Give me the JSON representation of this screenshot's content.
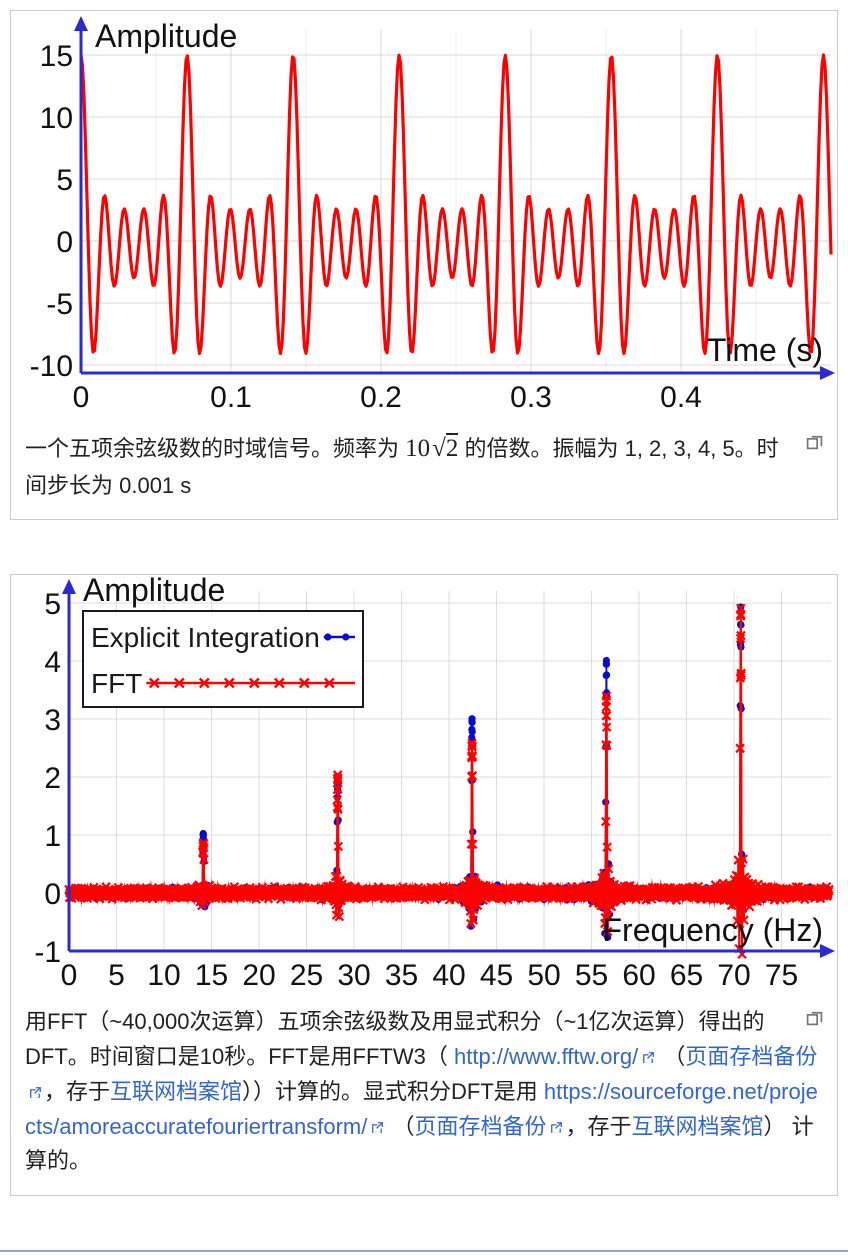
{
  "colors": {
    "axis_blue": "#2a2ad2",
    "curve_red": "#ff0000",
    "series_blue": "#0a0ad0",
    "link_blue": "#3366cc",
    "grid_gray": "#d9d9d9",
    "figure_border": "#c8ccd1"
  },
  "icons": {
    "expand": "expand-icon (two overlapping squares, opens media viewer)",
    "external_link": "external-link-icon (box with outward arrow)"
  },
  "figure1": {
    "caption_segments": [
      {
        "type": "text",
        "text": "一个五项余弦级数的时域信号。频率为 "
      },
      {
        "type": "math",
        "base": "10",
        "radicand": "2"
      },
      {
        "type": "text",
        "text": " 的倍数。振幅为 1, 2, 3, 4, 5。时间步长为 0.001 s"
      }
    ]
  },
  "figure2": {
    "caption_segments": [
      {
        "type": "text",
        "text": "用FFT（~40,000次运算）五项余弦级数及用显式积分（~1亿次运算）得出的DFT。时间窗口是10秒。FFT是用FFTW3（ "
      },
      {
        "type": "extlink",
        "text": "http://www.fftw.org/"
      },
      {
        "type": "text",
        "text": " （"
      },
      {
        "type": "extlink",
        "text": "页面存档备份"
      },
      {
        "type": "text",
        "text": "，存于"
      },
      {
        "type": "link",
        "text": "互联网档案馆"
      },
      {
        "type": "text",
        "text": "））计算的。显式积分DFT是用 "
      },
      {
        "type": "extlink",
        "text": "https://sourceforge.net/projects/amoreaccuratefouriertransform/"
      },
      {
        "type": "text",
        "text": " （"
      },
      {
        "type": "extlink",
        "text": "页面存档备份"
      },
      {
        "type": "text",
        "text": "，存于"
      },
      {
        "type": "link",
        "text": "互联网档案馆"
      },
      {
        "type": "text",
        "text": "） 计算的。"
      }
    ]
  },
  "chart_data": [
    {
      "id": "time_domain",
      "type": "line",
      "title": "",
      "xlabel": "Time (s)",
      "ylabel": "Amplitude",
      "xlim": [
        0,
        0.5
      ],
      "ylim": [
        -10,
        15
      ],
      "xticks": [
        0,
        0.1,
        0.2,
        0.3,
        0.4
      ],
      "xtick_labels": [
        "0",
        "0.1",
        "0.2",
        "0.3",
        "0.4"
      ],
      "yticks": [
        -10,
        -5,
        0,
        5,
        10,
        15
      ],
      "grid": true,
      "line_color": "#ff0000",
      "axis_color": "#2a2ad2",
      "signal": {
        "description": "five-term cosine series, frequencies are multiples of 10*sqrt(2) Hz",
        "base_frequency_hz": 14.142135623730951,
        "harmonics": [
          1,
          2,
          3,
          4,
          5
        ],
        "amplitudes": [
          1,
          2,
          3,
          4,
          5
        ],
        "time_step_s": 0.001,
        "duration_s": 0.5
      }
    },
    {
      "id": "frequency_domain",
      "type": "line",
      "title": "",
      "xlabel": "Frequency (Hz)",
      "ylabel": "Amplitude",
      "xlim": [
        0,
        80
      ],
      "ylim": [
        -1,
        5
      ],
      "xticks": [
        0,
        5,
        10,
        15,
        20,
        25,
        30,
        35,
        40,
        45,
        50,
        55,
        60,
        65,
        70,
        75
      ],
      "xtick_labels": [
        "0",
        "5",
        "10",
        "15",
        "20",
        "25",
        "30",
        "35",
        "40",
        "45",
        "50",
        "55",
        "60",
        "65",
        "70",
        "75"
      ],
      "yticks": [
        -1,
        0,
        1,
        2,
        3,
        4,
        5
      ],
      "grid": true,
      "axis_color": "#2a2ad2",
      "window_s": 10,
      "peak_frequencies_hz": [
        14.142135623730951,
        28.284271247461902,
        42.42640687119285,
        56.568542494923804,
        70.71067811865476
      ],
      "legend": {
        "position": "top-left",
        "entries": [
          {
            "label": "Explicit Integration",
            "color": "#0a0ad0",
            "marker": "dot"
          },
          {
            "label": "FFT",
            "color": "#ff0000",
            "marker": "x"
          }
        ]
      },
      "series": [
        {
          "name": "Explicit Integration",
          "color": "#0a0ad0",
          "marker": "dot",
          "peak_amplitudes": [
            1,
            2,
            3,
            4,
            5
          ]
        },
        {
          "name": "FFT",
          "color": "#ff0000",
          "marker": "x",
          "peak_amplitudes": [
            0.95,
            1.95,
            2.65,
            3.4,
            4.9
          ]
        }
      ]
    }
  ]
}
